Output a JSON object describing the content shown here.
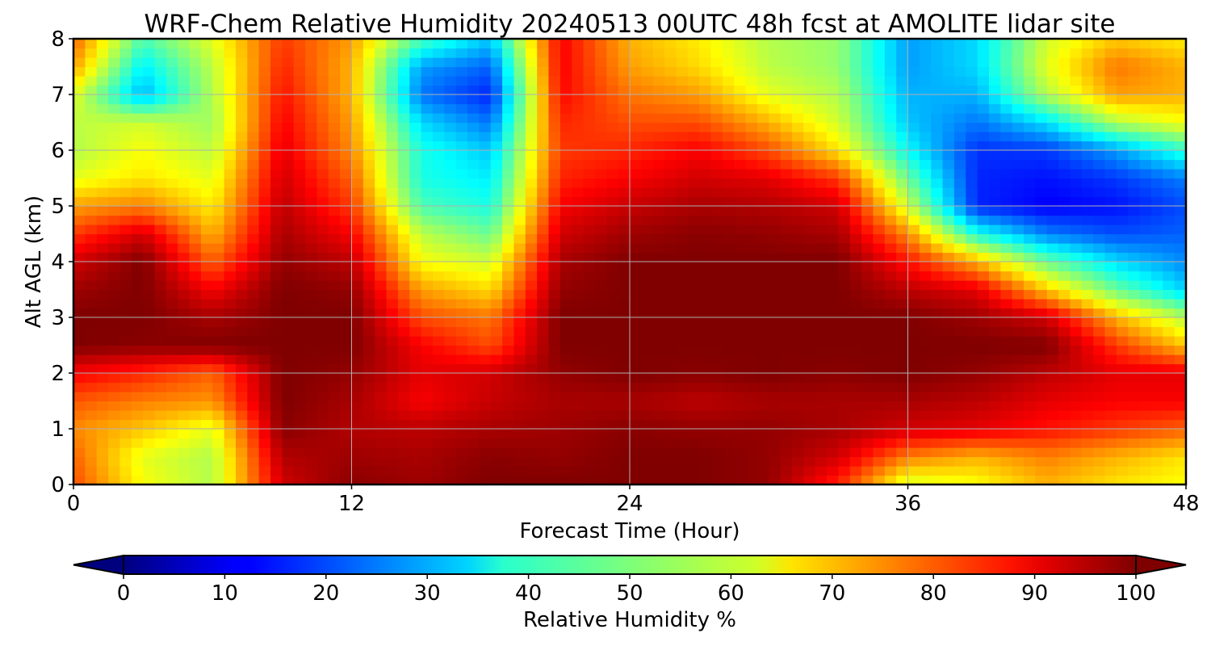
{
  "chart_data": {
    "type": "heatmap",
    "title": "WRF-Chem Relative Humidity 20240513 00UTC 48h fcst at AMOLITE lidar site",
    "xlabel": "Forecast Time (Hour)",
    "ylabel": "Alt AGL (km)",
    "xlim": [
      0,
      48
    ],
    "ylim": [
      0,
      8
    ],
    "x_ticks": [
      "0",
      "12",
      "24",
      "36",
      "48"
    ],
    "y_ticks": [
      "0",
      "1",
      "2",
      "3",
      "4",
      "5",
      "6",
      "7",
      "8"
    ],
    "grid": true,
    "colormap": "jet",
    "colorbar": {
      "label": "Relative Humidity %",
      "min": 0,
      "max": 100,
      "ticks": [
        "0",
        "10",
        "20",
        "30",
        "40",
        "50",
        "60",
        "70",
        "80",
        "90",
        "100"
      ],
      "extend": "both",
      "orientation": "horizontal"
    },
    "x": [
      0,
      3,
      6,
      9,
      12,
      15,
      18,
      21,
      24,
      27,
      30,
      33,
      36,
      39,
      42,
      45,
      48
    ],
    "y": [
      0,
      0.5,
      1,
      1.5,
      2,
      2.5,
      3,
      3.5,
      4,
      4.5,
      5,
      5.5,
      6,
      6.5,
      7,
      7.5,
      8
    ],
    "z": [
      [
        80,
        62,
        55,
        92,
        99,
        97,
        100,
        100,
        100,
        100,
        98,
        84,
        58,
        62,
        70,
        65,
        62
      ],
      [
        78,
        60,
        55,
        95,
        97,
        96,
        99,
        98,
        100,
        100,
        98,
        92,
        75,
        70,
        75,
        70,
        65
      ],
      [
        74,
        68,
        60,
        99,
        95,
        94,
        96,
        97,
        99,
        98,
        98,
        96,
        92,
        90,
        86,
        82,
        78
      ],
      [
        79,
        75,
        73,
        100,
        96,
        88,
        93,
        96,
        96,
        94,
        96,
        96,
        96,
        94,
        90,
        88,
        88
      ],
      [
        88,
        84,
        78,
        100,
        98,
        90,
        92,
        98,
        100,
        99,
        100,
        99,
        100,
        98,
        94,
        90,
        90
      ],
      [
        100,
        99,
        100,
        100,
        100,
        88,
        80,
        100,
        100,
        100,
        100,
        100,
        100,
        100,
        100,
        82,
        68
      ],
      [
        100,
        100,
        96,
        100,
        100,
        80,
        76,
        100,
        100,
        100,
        100,
        100,
        100,
        97,
        92,
        70,
        55
      ],
      [
        97,
        100,
        88,
        100,
        98,
        72,
        66,
        98,
        100,
        100,
        100,
        100,
        94,
        90,
        68,
        48,
        33
      ],
      [
        92,
        100,
        78,
        98,
        94,
        62,
        58,
        96,
        100,
        100,
        100,
        100,
        86,
        70,
        48,
        34,
        26
      ],
      [
        82,
        92,
        70,
        96,
        88,
        56,
        48,
        92,
        97,
        99,
        98,
        96,
        74,
        40,
        25,
        20,
        22
      ],
      [
        72,
        75,
        64,
        94,
        82,
        45,
        40,
        88,
        93,
        96,
        95,
        92,
        58,
        16,
        12,
        14,
        20
      ],
      [
        60,
        65,
        60,
        92,
        78,
        40,
        36,
        84,
        88,
        92,
        90,
        82,
        48,
        16,
        14,
        18,
        25
      ],
      [
        55,
        62,
        56,
        90,
        74,
        40,
        32,
        82,
        84,
        88,
        80,
        65,
        38,
        17,
        18,
        28,
        42
      ],
      [
        56,
        58,
        53,
        88,
        72,
        34,
        24,
        84,
        80,
        80,
        70,
        58,
        32,
        24,
        35,
        55,
        62
      ],
      [
        60,
        30,
        55,
        86,
        70,
        24,
        16,
        87,
        76,
        72,
        60,
        55,
        30,
        30,
        55,
        72,
        70
      ],
      [
        72,
        36,
        56,
        84,
        70,
        28,
        22,
        88,
        72,
        66,
        56,
        52,
        28,
        34,
        60,
        76,
        70
      ],
      [
        78,
        45,
        60,
        82,
        72,
        45,
        32,
        88,
        70,
        64,
        55,
        52,
        28,
        34,
        58,
        68,
        64
      ]
    ]
  }
}
